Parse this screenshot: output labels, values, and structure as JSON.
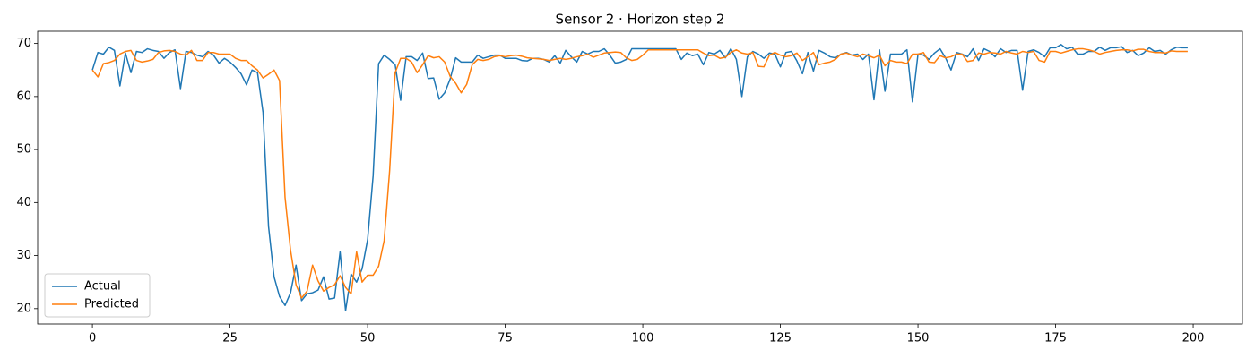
{
  "chart_data": {
    "type": "line",
    "title": "Sensor 2 · Horizon step 2",
    "x": [
      0,
      1,
      2,
      3,
      4,
      5,
      6,
      7,
      8,
      9,
      10,
      11,
      12,
      13,
      14,
      15,
      16,
      17,
      18,
      19,
      20,
      21,
      22,
      23,
      24,
      25,
      26,
      27,
      28,
      29,
      30,
      31,
      32,
      33,
      34,
      35,
      36,
      37,
      38,
      39,
      40,
      41,
      42,
      43,
      44,
      45,
      46,
      47,
      48,
      49,
      50,
      51,
      52,
      53,
      54,
      55,
      56,
      57,
      58,
      59,
      60,
      61,
      62,
      63,
      64,
      65,
      66,
      67,
      68,
      69,
      70,
      71,
      72,
      73,
      74,
      75,
      76,
      77,
      78,
      79,
      80,
      81,
      82,
      83,
      84,
      85,
      86,
      87,
      88,
      89,
      90,
      91,
      92,
      93,
      94,
      95,
      96,
      97,
      98,
      99,
      100,
      101,
      102,
      103,
      104,
      105,
      106,
      107,
      108,
      109,
      110,
      111,
      112,
      113,
      114,
      115,
      116,
      117,
      118,
      119,
      120,
      121,
      122,
      123,
      124,
      125,
      126,
      127,
      128,
      129,
      130,
      131,
      132,
      133,
      134,
      135,
      136,
      137,
      138,
      139,
      140,
      141,
      142,
      143,
      144,
      145,
      146,
      147,
      148,
      149,
      150,
      151,
      152,
      153,
      154,
      155,
      156,
      157,
      158,
      159,
      160,
      161,
      162,
      163,
      164,
      165,
      166,
      167,
      168,
      169,
      170,
      171,
      172,
      173,
      174,
      175,
      176,
      177,
      178,
      179,
      180,
      181,
      182,
      183,
      184,
      185,
      186,
      187,
      188,
      189,
      190,
      191,
      192,
      193,
      194,
      195,
      196,
      197,
      198,
      199
    ],
    "series": [
      {
        "name": "Actual",
        "color": "#1f77b4",
        "values": [
          65,
          68.3,
          68,
          69.3,
          68.7,
          62,
          68.2,
          64.5,
          68.5,
          68.3,
          69,
          68.7,
          68.5,
          67.2,
          68.3,
          68.8,
          61.5,
          68.5,
          68.3,
          67.8,
          67.5,
          68.5,
          67.8,
          66.3,
          67.2,
          66.5,
          65.5,
          64.3,
          62.2,
          65,
          64.5,
          57,
          35.5,
          26,
          22.3,
          20.6,
          23,
          28.2,
          21.5,
          22.8,
          23,
          23.5,
          26,
          21.8,
          22,
          30.7,
          19.6,
          26.5,
          25,
          27.5,
          33,
          45,
          66.2,
          67.8,
          67,
          66,
          59.3,
          67.5,
          67.5,
          66.8,
          68.2,
          63.4,
          63.5,
          59.5,
          60.7,
          63.3,
          67.3,
          66.5,
          66.5,
          66.5,
          67.8,
          67.2,
          67.5,
          67.8,
          67.8,
          67.2,
          67.2,
          67.2,
          66.8,
          66.7,
          67.2,
          67.2,
          67,
          66.5,
          67.7,
          66.3,
          68.7,
          67.5,
          66.5,
          68.5,
          68,
          68.5,
          68.5,
          69,
          67.8,
          66.3,
          66.5,
          67,
          69,
          69,
          69,
          69,
          69,
          69,
          69,
          69,
          69,
          67,
          68.2,
          67.7,
          68,
          66,
          68.3,
          68,
          68.7,
          67.3,
          69,
          67,
          60,
          67.5,
          68.5,
          68,
          67.2,
          68.2,
          68,
          65.6,
          68.3,
          68.5,
          66.7,
          64.3,
          68.3,
          64.8,
          68.7,
          68.2,
          67.5,
          67.3,
          68,
          68.3,
          67.8,
          68,
          67,
          68,
          59.4,
          68.8,
          61,
          68,
          68,
          68,
          68.8,
          59,
          68,
          67.8,
          67,
          68.2,
          69,
          67.3,
          65,
          68.3,
          68,
          67.5,
          69,
          66.8,
          69,
          68.5,
          67.5,
          69,
          68.3,
          68.7,
          68.7,
          61.2,
          68.5,
          68.8,
          68.3,
          67.5,
          69.2,
          69.2,
          69.8,
          69,
          69.3,
          68,
          68,
          68.5,
          68.5,
          69.3,
          68.7,
          69.2,
          69.2,
          69.4,
          68.3,
          68.7,
          67.7,
          68.2,
          69.2,
          68.5,
          68.7,
          68,
          68.8,
          69.3,
          69.2,
          69.2
        ]
      },
      {
        "name": "Predicted",
        "color": "#ff7f0e",
        "values": [
          65,
          63.7,
          66.2,
          66.4,
          66.8,
          68,
          68.5,
          68.7,
          66.8,
          66.5,
          66.7,
          67,
          68.3,
          68.6,
          68.7,
          68.5,
          68,
          67.8,
          68.7,
          66.8,
          66.8,
          68.3,
          68.3,
          68,
          68,
          68,
          67.2,
          66.8,
          66.8,
          65.8,
          65,
          63.5,
          64.2,
          65,
          63,
          41,
          31,
          24.5,
          22,
          23.3,
          28.2,
          25.2,
          23.3,
          24,
          24.5,
          26.2,
          24,
          22.8,
          30.7,
          25,
          26.3,
          26.3,
          28,
          32.8,
          46,
          64.5,
          67.2,
          67.2,
          66.5,
          64.5,
          66,
          67.7,
          67.3,
          67.5,
          66.5,
          63.8,
          62.5,
          60.7,
          62.3,
          66,
          67,
          66.8,
          67,
          67.5,
          67.7,
          67.5,
          67.7,
          67.8,
          67.6,
          67.3,
          67.2,
          67.1,
          67,
          66.8,
          67,
          67.2,
          67,
          67.2,
          67.5,
          67.7,
          68,
          67.4,
          67.8,
          68.2,
          68.3,
          68.4,
          68.3,
          67.3,
          66.8,
          67,
          67.8,
          68.8,
          68.8,
          68.8,
          68.8,
          68.8,
          68.8,
          68.8,
          68.8,
          68.8,
          68.8,
          68.2,
          67.7,
          67.8,
          67.2,
          67.4,
          68.3,
          68.8,
          68.2,
          68,
          68.3,
          65.7,
          65.6,
          67.8,
          68.3,
          67.8,
          67.5,
          67.7,
          68.2,
          66.8,
          67.5,
          68.3,
          66,
          66.3,
          66.5,
          67,
          68,
          68.2,
          67.8,
          67.5,
          68,
          67.7,
          67.3,
          67.8,
          65.8,
          66.8,
          66.5,
          66.5,
          66.2,
          68,
          68,
          68.3,
          66.5,
          66.4,
          67.7,
          67.3,
          67.5,
          68,
          68,
          66.6,
          66.8,
          68.2,
          68,
          68.3,
          68.2,
          68,
          68.5,
          68.2,
          68,
          68.5,
          68.3,
          68.5,
          66.8,
          66.5,
          68.5,
          68.5,
          68.2,
          68.5,
          68.8,
          69,
          69,
          68.8,
          68.5,
          68,
          68.3,
          68.5,
          68.7,
          68.8,
          68.8,
          68.6,
          68.9,
          68.9,
          68.5,
          68.3,
          68.3,
          68.2,
          68.6,
          68.5,
          68.5,
          68.5
        ]
      }
    ],
    "xlim": [
      -9.95,
      208.95
    ],
    "xticks": [
      0,
      25,
      50,
      75,
      100,
      125,
      150,
      175,
      200
    ],
    "ylim": [
      17.1,
      72.3
    ],
    "yticks": [
      20,
      30,
      40,
      50,
      60,
      70
    ],
    "grid": false,
    "legend": "lower left"
  }
}
